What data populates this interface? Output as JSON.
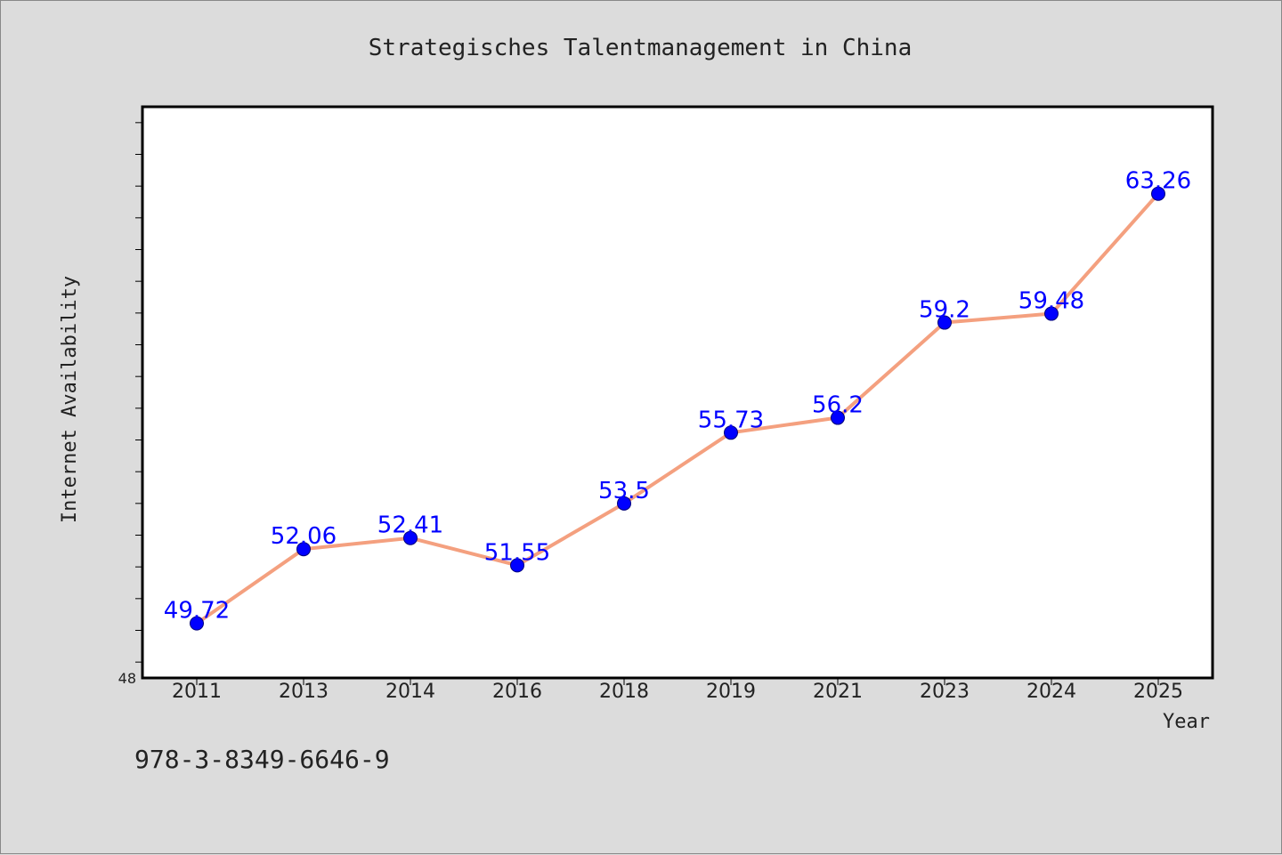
{
  "colors": {
    "background": "#dcdcdc",
    "plot_background": "#ffffff",
    "line": "#f4a07f",
    "marker": "#0000ff",
    "data_label": "#0000ff",
    "text": "#222222"
  },
  "isbn": "978-3-8349-6646-9",
  "chart_data": {
    "type": "line",
    "title": "Strategisches Talentmanagement in China",
    "xlabel": "Year",
    "ylabel": "Internet Availability",
    "categories": [
      "2011",
      "2013",
      "2014",
      "2016",
      "2018",
      "2019",
      "2021",
      "2023",
      "2024",
      "2025"
    ],
    "series": [
      {
        "values": [
          49.72,
          52.06,
          52.41,
          51.55,
          53.5,
          55.73,
          56.2,
          59.2,
          59.48,
          63.26
        ]
      }
    ],
    "data_labels": [
      "49.72",
      "52.06",
      "52.41",
      "51.55",
      "53.5",
      "55.73",
      "56.2",
      "59.2",
      "59.48",
      "63.26"
    ],
    "ylim": [
      48,
      66
    ],
    "y_tick_labels": [
      "48"
    ],
    "grid": false,
    "legend": "none"
  }
}
